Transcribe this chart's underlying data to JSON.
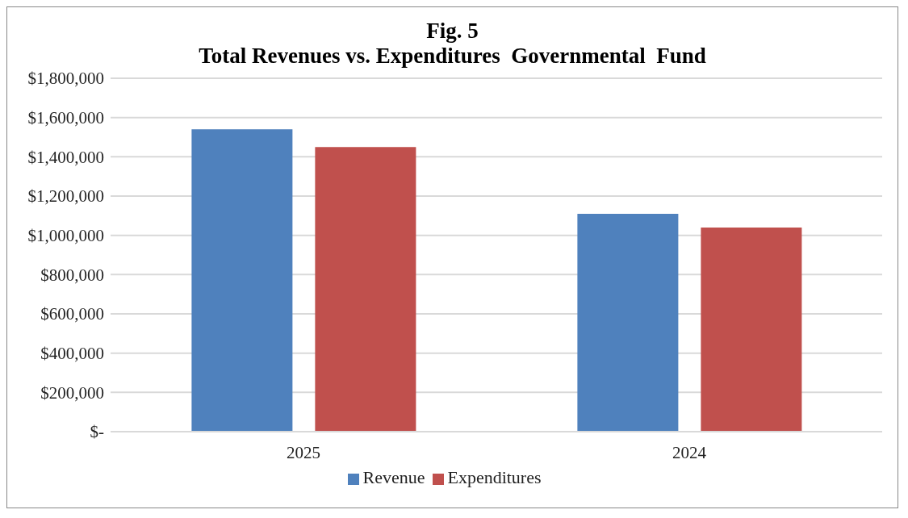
{
  "chart_data": {
    "type": "bar",
    "title": "Fig. 5",
    "subtitle": "Total Revenues vs. Expenditures  Governmental  Fund",
    "categories": [
      "2025",
      "2024"
    ],
    "series": [
      {
        "name": "Revenue",
        "color": "#4f81bd",
        "values": [
          1540000,
          1110000
        ]
      },
      {
        "name": "Expenditures",
        "color": "#c0504d",
        "values": [
          1450000,
          1040000
        ]
      }
    ],
    "ylim": [
      0,
      1800000
    ],
    "yticks": [
      {
        "value": 0,
        "label": "$-"
      },
      {
        "value": 200000,
        "label": "$200,000"
      },
      {
        "value": 400000,
        "label": "$400,000"
      },
      {
        "value": 600000,
        "label": "$600,000"
      },
      {
        "value": 800000,
        "label": "$800,000"
      },
      {
        "value": 1000000,
        "label": "$1,000,000"
      },
      {
        "value": 1200000,
        "label": "$1,200,000"
      },
      {
        "value": 1400000,
        "label": "$1,400,000"
      },
      {
        "value": 1600000,
        "label": "$1,600,000"
      },
      {
        "value": 1800000,
        "label": "$1,800,000"
      }
    ],
    "grid": "y",
    "legend": "bottom"
  }
}
